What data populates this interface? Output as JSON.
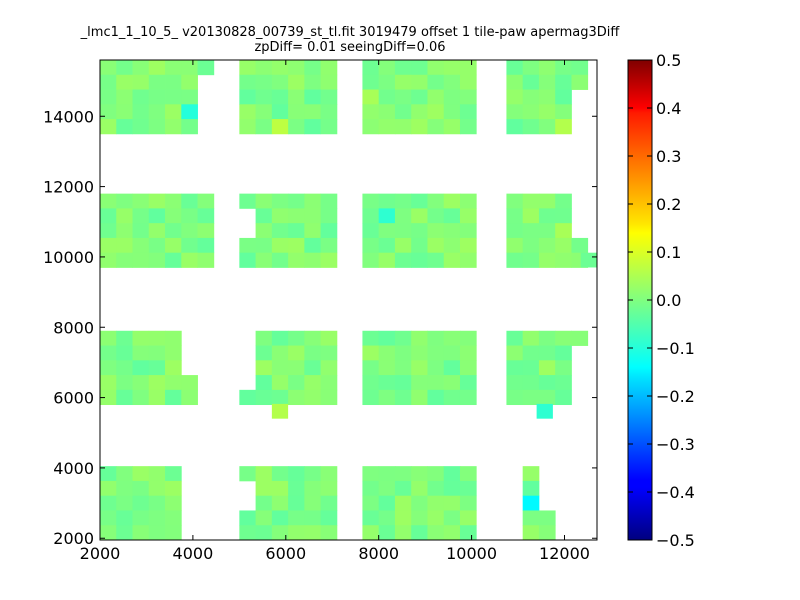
{
  "chart_data": {
    "type": "heatmap",
    "title": "_lmc1_1_10_5_ v20130828_00739_st_tl.fit 3019479 offset 1 tile-paw apermag3Diff",
    "subtitle": "zpDiff= 0.01 seeingDiff=0.06",
    "xlabel": "",
    "ylabel": "",
    "xlim": [
      2000,
      12700
    ],
    "ylim": [
      1950,
      15600
    ],
    "xticks": [
      2000,
      4000,
      6000,
      8000,
      10000,
      12000
    ],
    "yticks": [
      2000,
      4000,
      6000,
      8000,
      10000,
      12000,
      14000
    ],
    "colorbar": {
      "range": [
        -0.5,
        0.5
      ],
      "ticks": [
        -0.5,
        -0.4,
        -0.3,
        -0.2,
        -0.1,
        0.0,
        0.1,
        0.2,
        0.3,
        0.4,
        0.5
      ],
      "tick_labels": [
        "−0.5",
        "−0.4",
        "−0.3",
        "−0.2",
        "−0.1",
        "0.0",
        "0.1",
        "0.2",
        "0.3",
        "0.4",
        "0.5"
      ],
      "colormap": "jet"
    },
    "cell_width": 350,
    "cell_height": 420,
    "x_columns": [
      2000,
      2350,
      2700,
      3050,
      3400,
      3750,
      4100,
      5000,
      5350,
      5700,
      6050,
      6400,
      6750,
      7650,
      8000,
      8350,
      8700,
      9050,
      9400,
      9750,
      10750,
      11100,
      11450,
      11800,
      12150
    ],
    "row_bands": [
      {
        "y0": 13500,
        "rows": 5
      },
      {
        "y0": 9700,
        "rows": 5
      },
      {
        "y0": 5800,
        "rows": 5
      },
      {
        "y0": 1950,
        "rows": 5
      }
    ],
    "missing_cells": [
      [
        6,
        1
      ],
      [
        6,
        2
      ],
      [
        6,
        3
      ],
      [
        6,
        4
      ],
      [
        24,
        2
      ],
      [
        24,
        3
      ],
      [
        24,
        4
      ],
      [
        7,
        6
      ],
      [
        7,
        7
      ],
      [
        24,
        5
      ],
      [
        24,
        6
      ],
      [
        24,
        7
      ],
      [
        5,
        10
      ],
      [
        5,
        11
      ],
      [
        5,
        12
      ],
      [
        6,
        10
      ],
      [
        6,
        11
      ],
      [
        6,
        12
      ],
      [
        6,
        13
      ],
      [
        6,
        14
      ],
      [
        7,
        10
      ],
      [
        7,
        11
      ],
      [
        7,
        12
      ],
      [
        7,
        13
      ],
      [
        7,
        16
      ],
      [
        7,
        17
      ],
      [
        24,
        11
      ],
      [
        24,
        12
      ],
      [
        24,
        13
      ],
      [
        24,
        14
      ],
      [
        6,
        15
      ],
      [
        6,
        16
      ],
      [
        6,
        17
      ],
      [
        6,
        18
      ],
      [
        6,
        19
      ],
      [
        5,
        15
      ],
      [
        5,
        16
      ],
      [
        5,
        17
      ],
      [
        5,
        18
      ],
      [
        5,
        19
      ],
      [
        20,
        15
      ],
      [
        20,
        16
      ],
      [
        20,
        17
      ],
      [
        20,
        18
      ],
      [
        20,
        19
      ],
      [
        24,
        15
      ],
      [
        24,
        16
      ],
      [
        24,
        17
      ],
      [
        24,
        18
      ],
      [
        24,
        19
      ],
      [
        23,
        15
      ],
      [
        23,
        16
      ],
      [
        23,
        17
      ],
      [
        23,
        18
      ],
      [
        23,
        19
      ],
      [
        22,
        15
      ],
      [
        22,
        16
      ],
      [
        22,
        17
      ]
    ],
    "highlight_cells": [
      {
        "col": 5,
        "row": 3,
        "value": -0.09
      },
      {
        "col": 14,
        "row": 6,
        "value": -0.08
      },
      {
        "col": 20,
        "row": 17,
        "value": -0.12
      },
      {
        "col": 21,
        "row": 17,
        "value": -0.13
      },
      {
        "col": 13,
        "row": 2,
        "value": 0.04
      },
      {
        "col": 9,
        "row": 4,
        "value": 0.06
      },
      {
        "col": 23,
        "row": 4,
        "value": 0.05
      },
      {
        "col": 23,
        "row": 7,
        "value": 0.04
      }
    ],
    "extra_cells": [
      {
        "x": 5700,
        "y": 5400,
        "value": 0.05
      },
      {
        "x": 11400,
        "y": 5400,
        "value": -0.08
      },
      {
        "x": 12350,
        "y": 9700,
        "value": -0.02
      }
    ],
    "default_value_range": [
      -0.03,
      0.03
    ]
  }
}
